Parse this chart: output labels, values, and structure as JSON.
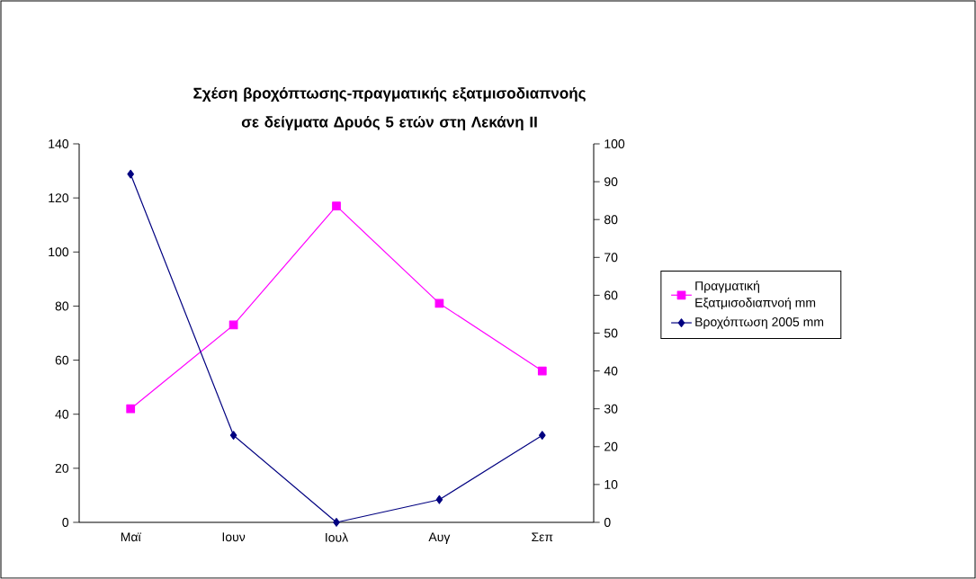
{
  "chart_data": {
    "type": "line",
    "title": "Σχέση βροχόπτωσης-πραγματικής εξατμισοδιαπνοής σε δείγματα Δρυός 5 ετών στη Λεκάνη ΙΙ",
    "categories": [
      "Μαϊ",
      "Ιουν",
      "Ιουλ",
      "Αυγ",
      "Σεπ"
    ],
    "series": [
      {
        "name": "Πραγματική Εξατμισοδιαπνοή mm",
        "color": "#ff00ff",
        "marker": "square",
        "values": [
          42,
          73,
          117,
          81,
          56
        ]
      },
      {
        "name": "Βροχόπτωση 2005 mm",
        "color": "#000080",
        "marker": "diamond",
        "axis": "y2",
        "values": [
          92,
          23,
          0,
          6,
          23
        ]
      }
    ],
    "ylim": [
      0,
      140
    ],
    "yticks": [
      0,
      20,
      40,
      60,
      80,
      100,
      120,
      140
    ],
    "y2lim": [
      0,
      100
    ],
    "y2ticks": [
      0,
      10,
      20,
      30,
      40,
      50,
      60,
      70,
      80,
      90,
      100
    ],
    "legend": "right",
    "grid": false
  }
}
